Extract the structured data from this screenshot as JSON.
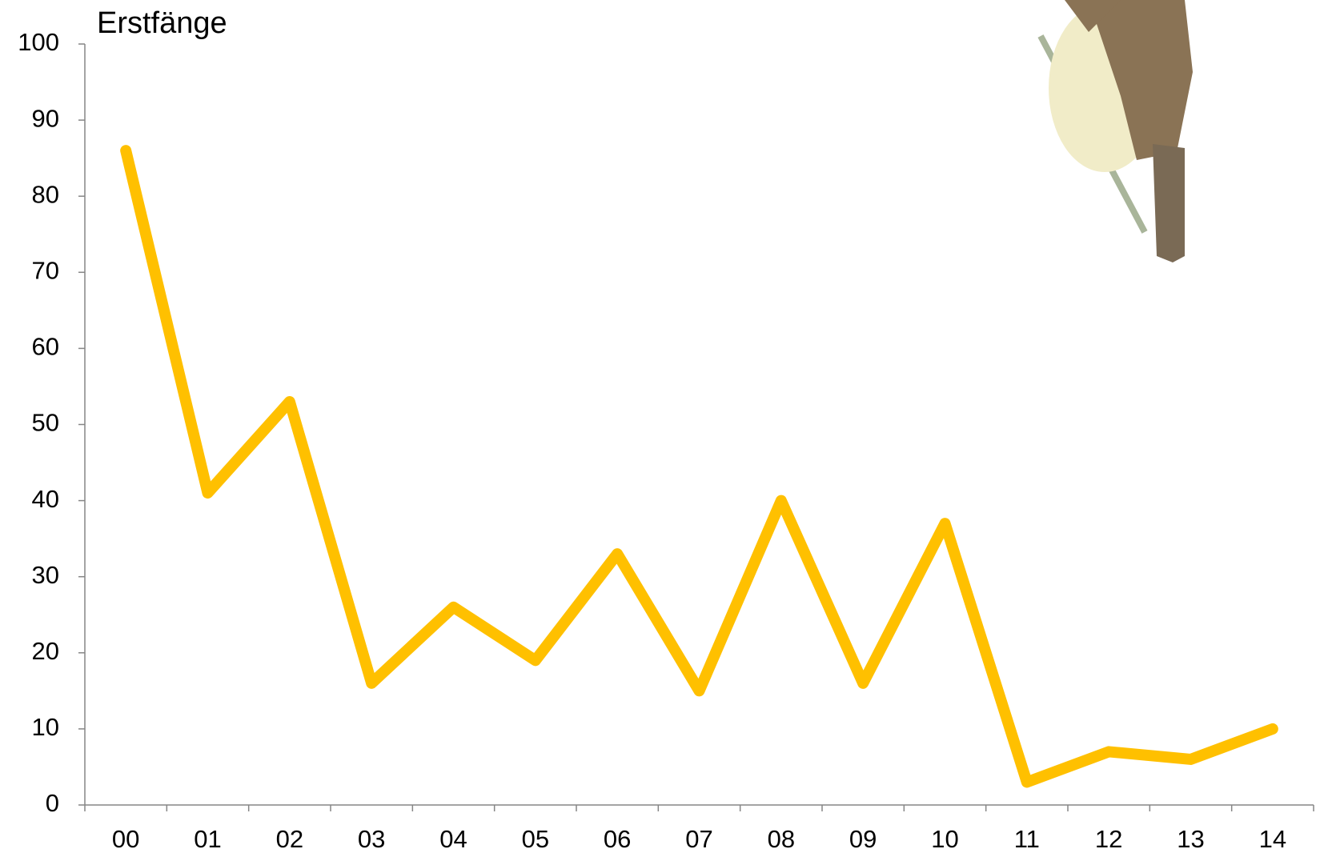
{
  "chart_data": {
    "type": "line",
    "title": "Erstfänge",
    "categories": [
      "00",
      "01",
      "02",
      "03",
      "04",
      "05",
      "06",
      "07",
      "08",
      "09",
      "10",
      "11",
      "12",
      "13",
      "14"
    ],
    "series": [
      {
        "color": "#ffc000",
        "values": [
          86,
          41,
          53,
          16,
          26,
          19,
          33,
          15,
          40,
          16,
          37,
          3,
          7,
          6,
          10
        ]
      }
    ],
    "ylim": [
      0,
      100
    ],
    "yticks": [
      0,
      10,
      20,
      30,
      40,
      50,
      60,
      70,
      80,
      90,
      100
    ],
    "grid": false
  }
}
